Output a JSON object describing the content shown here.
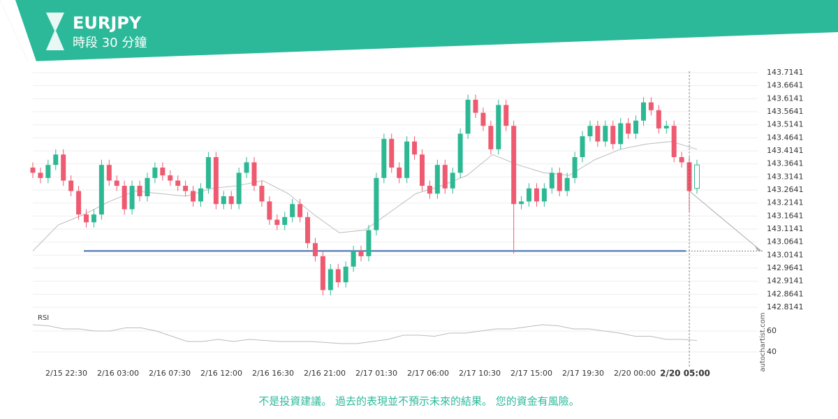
{
  "chart_data": {
    "type": "candlestick",
    "symbol": "EURJPY",
    "subtitle": "時段 30 分鐘",
    "disclaimer": "不是投資建議。 過去的表現並不預示未來的結果。 您的資金有風險。",
    "watermark": "autochartist.com",
    "rsi_label": "RSI",
    "up_color": "#2cb893",
    "down_color": "#ee5a70",
    "open": [
      143.35,
      143.33,
      143.31,
      143.36,
      143.4,
      143.3,
      143.26,
      143.17,
      143.14,
      143.17,
      143.36,
      143.3,
      143.28,
      143.19,
      143.28,
      143.24,
      143.31,
      143.35,
      143.32,
      143.3,
      143.28,
      143.26,
      143.22,
      143.27,
      143.39,
      143.21,
      143.24,
      143.21,
      143.33,
      143.37,
      143.28,
      143.22,
      143.15,
      143.13,
      143.16,
      143.21,
      143.16,
      143.06,
      143.01,
      142.88,
      142.96,
      142.91,
      142.97,
      143.03,
      143.01,
      143.11,
      143.31,
      143.46,
      143.35,
      143.31,
      143.45,
      143.4,
      143.28,
      143.25,
      143.36,
      143.27,
      143.33,
      143.48,
      143.61,
      143.56,
      143.51,
      143.42,
      143.59,
      143.51,
      143.21,
      143.22,
      143.27,
      143.22,
      143.27,
      143.33,
      143.26,
      143.31,
      143.39,
      143.47,
      143.51,
      143.45,
      143.51,
      143.44,
      143.52,
      143.48,
      143.53,
      143.6,
      143.57,
      143.5,
      143.51,
      143.39,
      143.37,
      143.27
    ],
    "high": [
      143.37,
      143.35,
      143.38,
      143.42,
      143.42,
      143.32,
      143.28,
      143.19,
      143.19,
      143.38,
      143.38,
      143.32,
      143.3,
      143.3,
      143.3,
      143.33,
      143.37,
      143.37,
      143.34,
      143.32,
      143.3,
      143.28,
      143.29,
      143.41,
      143.41,
      143.26,
      143.26,
      143.35,
      143.39,
      143.39,
      143.3,
      143.24,
      143.17,
      143.18,
      143.23,
      143.23,
      143.18,
      143.08,
      143.03,
      142.98,
      142.98,
      142.99,
      143.05,
      143.05,
      143.13,
      143.33,
      143.48,
      143.48,
      143.37,
      143.47,
      143.47,
      143.42,
      143.3,
      143.38,
      143.38,
      143.35,
      143.5,
      143.63,
      143.63,
      143.58,
      143.53,
      143.61,
      143.61,
      143.53,
      143.24,
      143.29,
      143.29,
      143.29,
      143.35,
      143.35,
      143.33,
      143.41,
      143.49,
      143.53,
      143.53,
      143.53,
      143.53,
      143.54,
      143.54,
      143.55,
      143.62,
      143.62,
      143.59,
      143.53,
      143.53,
      143.41,
      143.39,
      143.38
    ],
    "low": [
      143.31,
      143.29,
      143.29,
      143.34,
      143.28,
      143.24,
      143.15,
      143.12,
      143.12,
      143.15,
      143.28,
      143.26,
      143.17,
      143.17,
      143.22,
      143.22,
      143.29,
      143.3,
      143.28,
      143.26,
      143.24,
      143.2,
      143.2,
      143.25,
      143.19,
      143.19,
      143.19,
      143.19,
      143.31,
      143.26,
      143.2,
      143.13,
      143.11,
      143.11,
      143.14,
      143.14,
      143.04,
      142.99,
      142.86,
      142.86,
      142.89,
      142.89,
      142.95,
      142.99,
      142.99,
      143.09,
      143.29,
      143.33,
      143.29,
      143.29,
      143.38,
      143.26,
      143.23,
      143.23,
      143.25,
      143.25,
      143.31,
      143.46,
      143.54,
      143.49,
      143.4,
      143.4,
      143.49,
      143.02,
      143.19,
      143.2,
      143.2,
      143.2,
      143.25,
      143.24,
      143.24,
      143.29,
      143.37,
      143.45,
      143.43,
      143.43,
      143.42,
      143.42,
      143.46,
      143.46,
      143.51,
      143.55,
      143.48,
      143.48,
      143.37,
      143.35,
      143.18,
      143.25
    ],
    "close": [
      143.33,
      143.31,
      143.36,
      143.4,
      143.3,
      143.26,
      143.17,
      143.14,
      143.17,
      143.36,
      143.3,
      143.28,
      143.19,
      143.28,
      143.24,
      143.31,
      143.35,
      143.32,
      143.3,
      143.28,
      143.26,
      143.22,
      143.27,
      143.39,
      143.21,
      143.24,
      143.21,
      143.33,
      143.37,
      143.28,
      143.22,
      143.15,
      143.13,
      143.16,
      143.21,
      143.16,
      143.06,
      143.01,
      142.88,
      142.96,
      142.91,
      142.97,
      143.03,
      143.01,
      143.11,
      143.31,
      143.46,
      143.35,
      143.31,
      143.45,
      143.4,
      143.28,
      143.25,
      143.36,
      143.27,
      143.33,
      143.48,
      143.61,
      143.56,
      143.51,
      143.42,
      143.59,
      143.51,
      143.21,
      143.22,
      143.27,
      143.22,
      143.27,
      143.33,
      143.26,
      143.31,
      143.39,
      143.47,
      143.51,
      143.45,
      143.51,
      143.44,
      143.52,
      143.48,
      143.53,
      143.6,
      143.57,
      143.5,
      143.51,
      143.39,
      143.37,
      143.26,
      143.36
    ],
    "moving_average": [
      143.03,
      143.13,
      143.17,
      143.22,
      143.26,
      143.25,
      143.24,
      143.27,
      143.28,
      143.3,
      143.25,
      143.17,
      143.1,
      143.11,
      143.18,
      143.25,
      143.28,
      143.32,
      143.4,
      143.36,
      143.33,
      143.32,
      143.38,
      143.42,
      143.44,
      143.45,
      143.42
    ],
    "rsi": [
      66,
      65,
      62,
      62,
      60,
      60,
      63,
      63,
      60,
      55,
      50,
      50,
      52,
      50,
      52,
      51,
      50,
      50,
      50,
      49,
      48,
      48,
      50,
      52,
      56,
      56,
      55,
      58,
      58,
      60,
      62,
      62,
      64,
      66,
      65,
      62,
      62,
      60,
      58,
      55,
      55,
      52,
      52,
      51
    ],
    "level": 143.03,
    "ylim": [
      142.8141,
      143.7141
    ],
    "yticks": [
      143.7141,
      143.6641,
      143.6141,
      143.5641,
      143.5141,
      143.4641,
      143.4141,
      143.3641,
      143.3141,
      143.2641,
      143.2141,
      143.1641,
      143.1141,
      143.0641,
      143.0141,
      142.9641,
      142.9141,
      142.8641,
      142.8141
    ],
    "rsi_ticks": [
      60,
      40
    ],
    "x_labels": [
      "2/15 22:30",
      "2/16 03:00",
      "2/16 07:30",
      "2/16 12:00",
      "2/16 16:30",
      "2/16 21:00",
      "2/17 01:30",
      "2/17 06:00",
      "2/17 10:30",
      "2/17 15:00",
      "2/17 19:30",
      "2/20 00:00"
    ],
    "current_label": "2/20 05:00"
  }
}
